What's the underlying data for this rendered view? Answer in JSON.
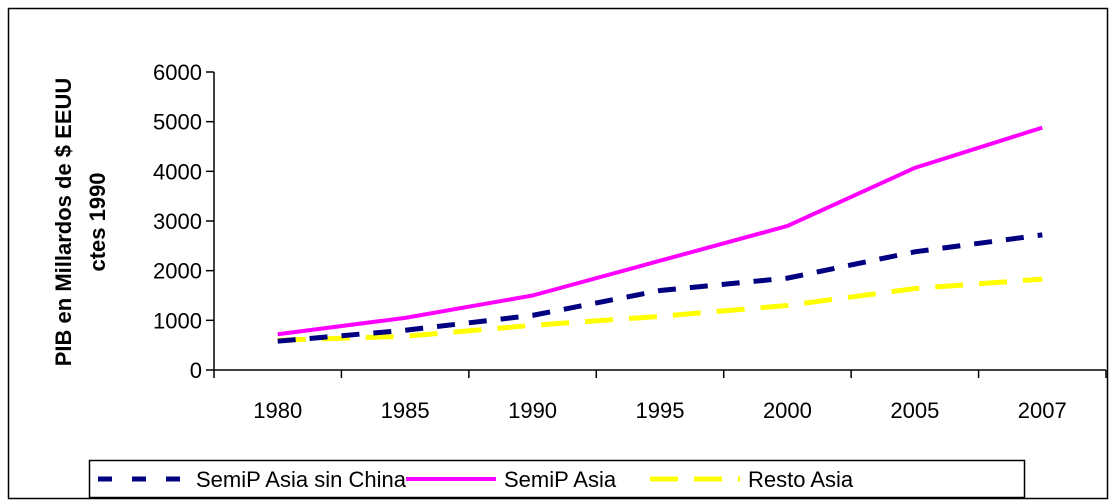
{
  "chart_data": {
    "type": "line",
    "title": "",
    "xlabel": "",
    "ylabel_lines": [
      "PIB en Millardos de $ EEUU",
      "ctes 1990"
    ],
    "categories": [
      "1980",
      "1985",
      "1990",
      "1995",
      "2000",
      "2005",
      "2007"
    ],
    "ylim": [
      0,
      6000
    ],
    "yticks": [
      "0",
      "1000",
      "2000",
      "3000",
      "4000",
      "5000",
      "6000"
    ],
    "grid": false,
    "legend_position": "bottom",
    "series": [
      {
        "name": "SemiP Asia sin China",
        "values": [
          580,
          800,
          1100,
          1600,
          1850,
          2380,
          2720
        ],
        "color": "#000080",
        "style": "dashed"
      },
      {
        "name": "SemiP Asia",
        "values": [
          720,
          1050,
          1500,
          2200,
          2900,
          4070,
          4880
        ],
        "color": "#ff00ff",
        "style": "solid"
      },
      {
        "name": "Resto Asia",
        "values": [
          600,
          680,
          900,
          1080,
          1300,
          1640,
          1830
        ],
        "color": "#ffff00",
        "style": "dashed"
      }
    ]
  }
}
